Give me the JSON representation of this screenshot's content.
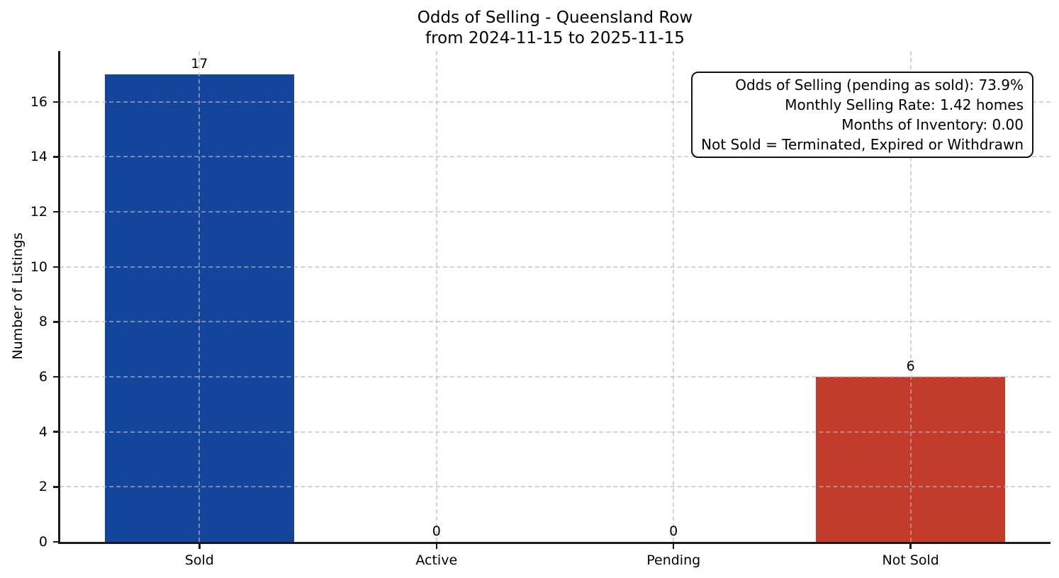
{
  "title": {
    "line1": "Odds of Selling - Queensland Row",
    "line2": "from 2024-11-15 to 2025-11-15"
  },
  "chart_data": {
    "type": "bar",
    "title": "Odds of Selling - Queensland Row",
    "subtitle": "from 2024-11-15 to 2025-11-15",
    "categories": [
      "Sold",
      "Active",
      "Pending",
      "Not Sold"
    ],
    "values": [
      17,
      0,
      0,
      6
    ],
    "value_labels": [
      "17",
      "0",
      "0",
      "6"
    ],
    "bar_colors": [
      "#14459c",
      null,
      null,
      "#c23b2b"
    ],
    "xlabel": "",
    "ylabel": "Number of Listings",
    "ylim": [
      0,
      17.85
    ],
    "yticks": [
      0,
      2,
      4,
      6,
      8,
      10,
      12,
      14,
      16
    ],
    "grid": "dashed both axes, drawn over bars",
    "legend": "none",
    "annotation_position": "top-right",
    "annotation_lines": [
      "Odds of Selling (pending as sold): 73.9%",
      "Monthly Selling Rate: 1.42 homes",
      "Months of Inventory: 0.00",
      "Not Sold = Terminated, Expired or Withdrawn"
    ]
  }
}
